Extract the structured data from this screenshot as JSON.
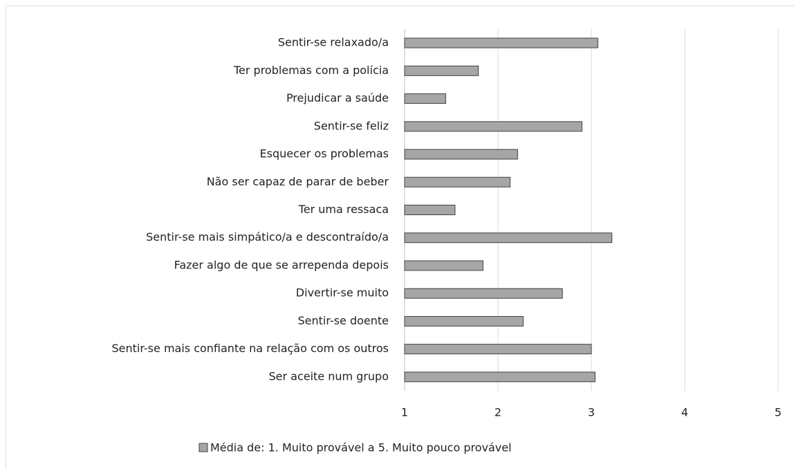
{
  "chart_data": {
    "type": "bar",
    "orientation": "horizontal",
    "categories": [
      "Sentir-se relaxado/a",
      "Ter problemas com a polícia",
      "Prejudicar a saúde",
      "Sentir-se feliz",
      "Esquecer os problemas",
      "Não ser capaz de parar de beber",
      "Ter uma ressaca",
      "Sentir-se mais simpático/a e descontraído/a",
      "Fazer algo de que se arrependa depois",
      "Divertir-se muito",
      "Sentir-se doente",
      "Sentir-se mais confiante na relação com os outros",
      "Ser aceite num grupo"
    ],
    "series": [
      {
        "name": "Média de: 1. Muito provável a 5. Muito pouco provável",
        "color": "#a6a6a6",
        "values": [
          3.07,
          1.79,
          1.44,
          2.9,
          2.21,
          2.13,
          1.54,
          3.22,
          1.84,
          2.69,
          2.27,
          3.0,
          3.04
        ]
      }
    ],
    "xlim": [
      1,
      5
    ],
    "xticks": [
      1,
      2,
      3,
      4,
      5
    ],
    "grid": true,
    "legend": "bottom"
  }
}
